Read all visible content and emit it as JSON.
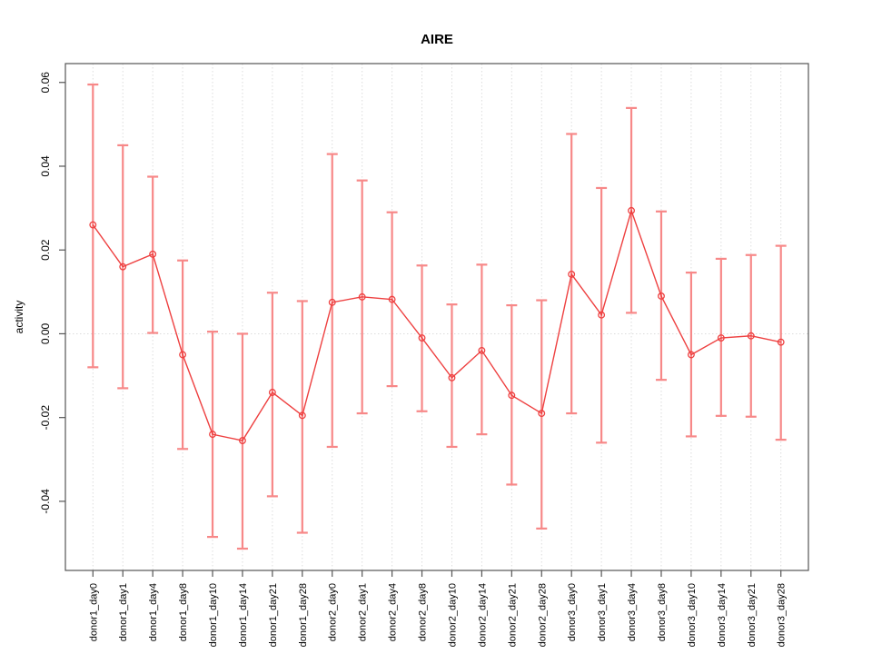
{
  "chart_data": {
    "type": "line",
    "title": "AIRE",
    "xlabel": "",
    "ylabel": "activity",
    "legend": "none",
    "grid": "dotted vertical line per category and dotted horizontal reference line at y=0",
    "reference_line_y": 0,
    "ylim": [
      -0.0565,
      0.0645
    ],
    "y_ticks": [
      0.06,
      0.04,
      0.02,
      0.0,
      -0.02,
      -0.04
    ],
    "y_tick_labels": [
      "0.06",
      "0.04",
      "0.02",
      "0.00",
      "-0.02",
      "-0.04"
    ],
    "categories": [
      "donor1_day0",
      "donor1_day1",
      "donor1_day4",
      "donor1_day8",
      "donor1_day10",
      "donor1_day14",
      "donor1_day21",
      "donor1_day28",
      "donor2_day0",
      "donor2_day1",
      "donor2_day4",
      "donor2_day8",
      "donor2_day10",
      "donor2_day14",
      "donor2_day21",
      "donor2_day28",
      "donor3_day0",
      "donor3_day1",
      "donor3_day4",
      "donor3_day8",
      "donor3_day10",
      "donor3_day14",
      "donor3_day21",
      "donor3_day28"
    ],
    "series": [
      {
        "name": "activity",
        "marker": "open-circle",
        "values": [
          0.026,
          0.016,
          0.019,
          -0.005,
          -0.024,
          -0.0255,
          -0.014,
          -0.0195,
          0.0075,
          0.0088,
          0.0082,
          -0.001,
          -0.0105,
          -0.004,
          -0.0147,
          -0.019,
          0.0142,
          0.0045,
          0.0294,
          0.009,
          -0.005,
          -0.001,
          -0.0005,
          -0.002
        ],
        "lower": [
          -0.008,
          -0.013,
          0.0002,
          -0.0275,
          -0.0485,
          -0.0513,
          -0.0388,
          -0.0475,
          -0.027,
          -0.019,
          -0.0125,
          -0.0185,
          -0.027,
          -0.024,
          -0.036,
          -0.0465,
          -0.019,
          -0.026,
          0.005,
          -0.011,
          -0.0245,
          -0.0196,
          -0.0198,
          -0.0253
        ],
        "upper": [
          0.0595,
          0.045,
          0.0375,
          0.0175,
          0.0005,
          0.0,
          0.0098,
          0.0078,
          0.0429,
          0.0366,
          0.029,
          0.0163,
          0.007,
          0.0165,
          0.0068,
          0.008,
          0.0477,
          0.0348,
          0.0539,
          0.0292,
          0.0146,
          0.0179,
          0.0188,
          0.021
        ]
      }
    ],
    "colors": {
      "line": "#ee4040",
      "error_bar": "#f78888",
      "grid": "#dcdcdc",
      "frame": "#555555",
      "text": "#000000",
      "background": "#ffffff"
    }
  }
}
